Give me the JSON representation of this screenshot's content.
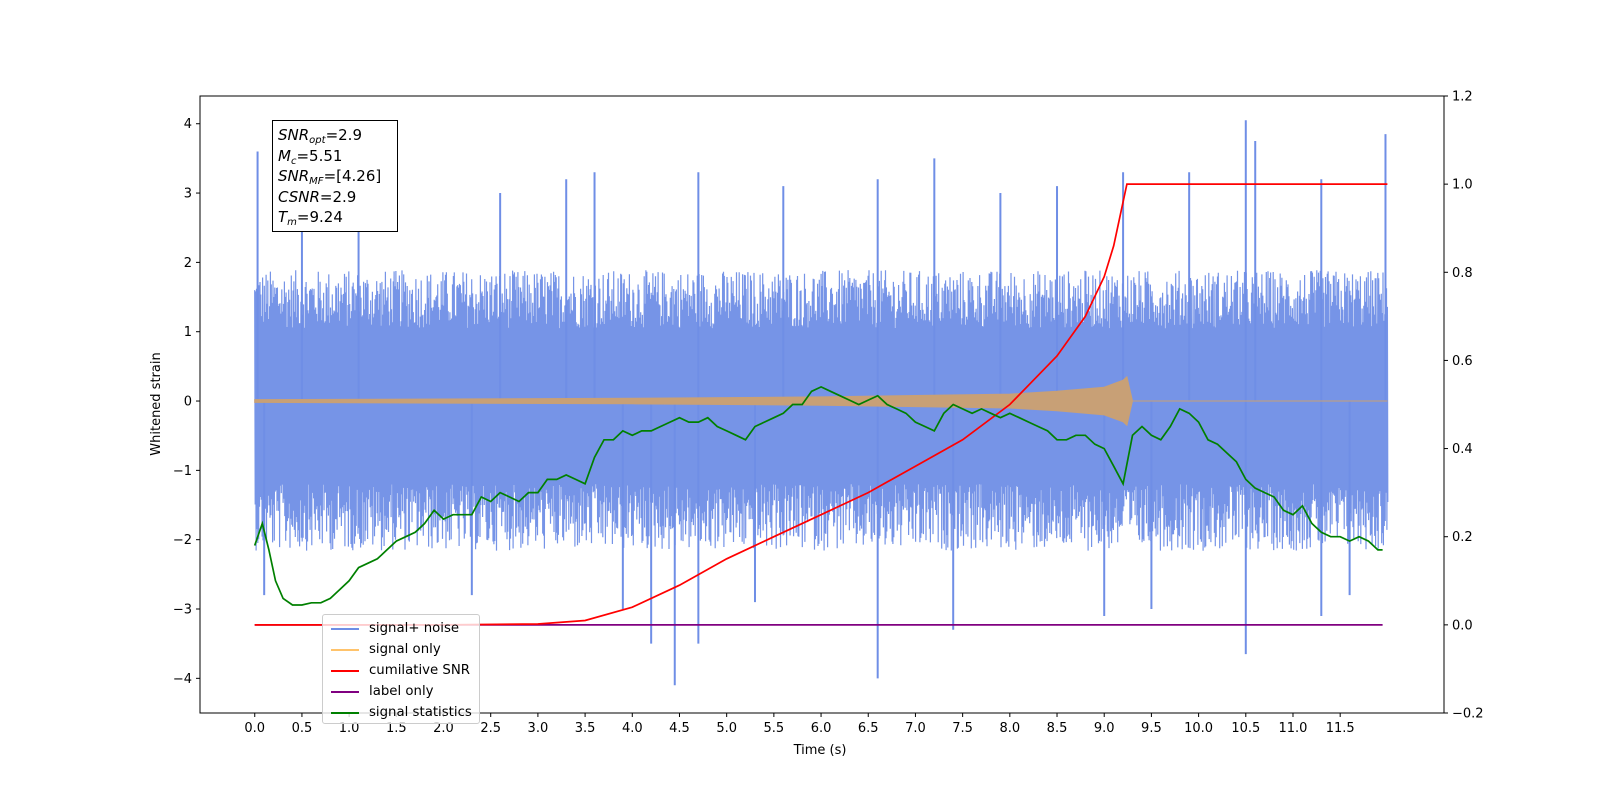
{
  "chart_data": {
    "type": "line",
    "xlabel": "Time (s)",
    "ylabel": "Whitened strain",
    "xlim": [
      -0.58,
      12.6
    ],
    "ylim": [
      -4.5,
      4.4
    ],
    "y2lim": [
      -0.2,
      1.2
    ],
    "x_ticks": [
      0.0,
      0.5,
      1.0,
      1.5,
      2.0,
      2.5,
      3.0,
      3.5,
      4.0,
      4.5,
      5.0,
      5.5,
      6.0,
      6.5,
      7.0,
      7.5,
      8.0,
      8.5,
      9.0,
      9.5,
      10.0,
      10.5,
      11.0,
      11.5
    ],
    "x_tick_labels": [
      "0.0",
      "0.5",
      "1.0",
      "1.5",
      "2.0",
      "2.5",
      "3.0",
      "3.5",
      "4.0",
      "4.5",
      "5.0",
      "5.5",
      "6.0",
      "6.5",
      "7.0",
      "7.5",
      "8.0",
      "8.5",
      "9.0",
      "9.5",
      "10.0",
      "10.5",
      "11.0",
      "11.5"
    ],
    "y_ticks": [
      -4,
      -3,
      -2,
      -1,
      0,
      1,
      2,
      3,
      4
    ],
    "y_tick_labels": [
      "−4",
      "−3",
      "−2",
      "−1",
      "0",
      "1",
      "2",
      "3",
      "4"
    ],
    "y2_ticks": [
      -0.2,
      0.0,
      0.2,
      0.4,
      0.6,
      0.8,
      1.0,
      1.2
    ],
    "y2_tick_labels": [
      "−0.2",
      "0.0",
      "0.2",
      "0.4",
      "0.6",
      "0.8",
      "1.0",
      "1.2"
    ],
    "grid": false,
    "legend_position": "lower-left",
    "series": [
      {
        "name": "signal+ noise",
        "axis": "left",
        "color": "#6f8ee6",
        "description_kind": "noise band",
        "x_range": [
          0.0,
          12.0
        ],
        "band_upper_typical": 1.4,
        "band_lower_typical": -1.6,
        "peaks_x": [
          0.03,
          0.5,
          1.1,
          2.6,
          3.3,
          3.6,
          4.7,
          5.6,
          6.6,
          7.2,
          7.9,
          8.5,
          9.2,
          9.9,
          10.5,
          10.6,
          11.3,
          11.98
        ],
        "peaks_y": [
          3.6,
          3.0,
          3.1,
          3.0,
          3.2,
          3.3,
          3.3,
          3.1,
          3.2,
          3.5,
          3.0,
          3.1,
          3.3,
          3.3,
          4.05,
          3.75,
          3.2,
          3.85
        ],
        "troughs_x": [
          0.1,
          2.3,
          3.9,
          4.2,
          4.45,
          4.7,
          5.3,
          6.6,
          7.4,
          9.0,
          9.5,
          10.5,
          11.3,
          11.6
        ],
        "troughs_y": [
          -2.8,
          -2.8,
          -3.0,
          -3.5,
          -4.1,
          -3.5,
          -2.9,
          -4.0,
          -3.3,
          -3.1,
          -3.0,
          -3.65,
          -3.1,
          -2.8
        ]
      },
      {
        "name": "signal only",
        "axis": "left",
        "color": "#c8a076",
        "x": [
          0.0,
          2.0,
          4.0,
          6.0,
          7.0,
          8.0,
          8.5,
          9.0,
          9.2,
          9.24,
          9.3,
          12.0
        ],
        "amplitude": [
          0.02,
          0.03,
          0.04,
          0.06,
          0.08,
          0.1,
          0.14,
          0.2,
          0.3,
          0.35,
          0.0,
          0.0
        ]
      },
      {
        "name": "cumilative SNR",
        "axis": "right",
        "color": "#ff0000",
        "x": [
          0.0,
          2.0,
          3.0,
          3.5,
          4.0,
          4.5,
          5.0,
          5.5,
          6.0,
          6.5,
          7.0,
          7.5,
          8.0,
          8.5,
          8.8,
          9.0,
          9.1,
          9.2,
          9.24,
          12.0
        ],
        "y": [
          0.0,
          0.0,
          0.002,
          0.01,
          0.04,
          0.09,
          0.15,
          0.2,
          0.25,
          0.3,
          0.36,
          0.42,
          0.5,
          0.61,
          0.7,
          0.79,
          0.86,
          0.96,
          1.0,
          1.0
        ]
      },
      {
        "name": "label only",
        "axis": "right",
        "color": "#800080",
        "x": [
          0.0,
          11.95
        ],
        "y": [
          0.0,
          0.0
        ]
      },
      {
        "name": "signal statistics",
        "axis": "right",
        "color": "#008000",
        "x": [
          0.0,
          0.08,
          0.15,
          0.22,
          0.3,
          0.4,
          0.5,
          0.6,
          0.7,
          0.8,
          0.9,
          1.0,
          1.1,
          1.2,
          1.3,
          1.4,
          1.5,
          1.6,
          1.7,
          1.8,
          1.9,
          2.0,
          2.1,
          2.2,
          2.3,
          2.4,
          2.5,
          2.6,
          2.7,
          2.8,
          2.9,
          3.0,
          3.1,
          3.2,
          3.3,
          3.4,
          3.5,
          3.6,
          3.7,
          3.8,
          3.9,
          4.0,
          4.1,
          4.2,
          4.3,
          4.4,
          4.5,
          4.6,
          4.7,
          4.8,
          4.9,
          5.0,
          5.1,
          5.2,
          5.3,
          5.4,
          5.5,
          5.6,
          5.7,
          5.8,
          5.9,
          6.0,
          6.1,
          6.2,
          6.3,
          6.4,
          6.5,
          6.6,
          6.7,
          6.8,
          6.9,
          7.0,
          7.1,
          7.2,
          7.3,
          7.4,
          7.5,
          7.6,
          7.7,
          7.8,
          7.9,
          8.0,
          8.1,
          8.2,
          8.3,
          8.4,
          8.5,
          8.6,
          8.7,
          8.8,
          8.9,
          9.0,
          9.1,
          9.2,
          9.3,
          9.4,
          9.5,
          9.6,
          9.7,
          9.8,
          9.9,
          10.0,
          10.1,
          10.2,
          10.3,
          10.4,
          10.5,
          10.6,
          10.7,
          10.8,
          10.9,
          11.0,
          11.1,
          11.2,
          11.3,
          11.4,
          11.5,
          11.6,
          11.7,
          11.8,
          11.9,
          11.95
        ],
        "y": [
          0.18,
          0.23,
          0.17,
          0.1,
          0.06,
          0.045,
          0.045,
          0.05,
          0.05,
          0.06,
          0.08,
          0.1,
          0.13,
          0.14,
          0.15,
          0.17,
          0.19,
          0.2,
          0.21,
          0.23,
          0.26,
          0.24,
          0.25,
          0.25,
          0.25,
          0.29,
          0.28,
          0.3,
          0.29,
          0.28,
          0.3,
          0.3,
          0.33,
          0.33,
          0.34,
          0.33,
          0.32,
          0.38,
          0.42,
          0.42,
          0.44,
          0.43,
          0.44,
          0.44,
          0.45,
          0.46,
          0.47,
          0.46,
          0.46,
          0.47,
          0.45,
          0.44,
          0.43,
          0.42,
          0.45,
          0.46,
          0.47,
          0.48,
          0.5,
          0.5,
          0.53,
          0.54,
          0.53,
          0.52,
          0.51,
          0.5,
          0.51,
          0.52,
          0.5,
          0.49,
          0.48,
          0.46,
          0.45,
          0.44,
          0.48,
          0.5,
          0.49,
          0.48,
          0.49,
          0.48,
          0.47,
          0.48,
          0.47,
          0.46,
          0.45,
          0.44,
          0.42,
          0.42,
          0.43,
          0.43,
          0.41,
          0.4,
          0.36,
          0.32,
          0.43,
          0.45,
          0.43,
          0.42,
          0.45,
          0.49,
          0.48,
          0.46,
          0.42,
          0.41,
          0.39,
          0.37,
          0.33,
          0.31,
          0.3,
          0.29,
          0.26,
          0.25,
          0.27,
          0.23,
          0.21,
          0.2,
          0.2,
          0.19,
          0.2,
          0.19,
          0.17,
          0.17
        ]
      }
    ]
  },
  "stats_box": {
    "snr_opt_sym": "SNR",
    "snr_opt_sub": "opt",
    "snr_opt_val": "=2.9",
    "mc_sym": "M",
    "mc_sub": "c",
    "mc_val": "=5.51",
    "snr_mf_sym": "SNR",
    "snr_mf_sub": "MF",
    "snr_mf_val": "=[4.26]",
    "csnr_sym": "CSNR",
    "csnr_val": "=2.9",
    "tm_sym": "T",
    "tm_sub": "m",
    "tm_val": "=9.24"
  },
  "legend": {
    "items": [
      {
        "label": "signal+ noise",
        "color": "#6f8ee6"
      },
      {
        "label": "signal only",
        "color": "#ffc36b"
      },
      {
        "label": "cumilative SNR",
        "color": "#ff0000"
      },
      {
        "label": "label only",
        "color": "#800080"
      },
      {
        "label": "signal statistics",
        "color": "#008000"
      }
    ]
  }
}
